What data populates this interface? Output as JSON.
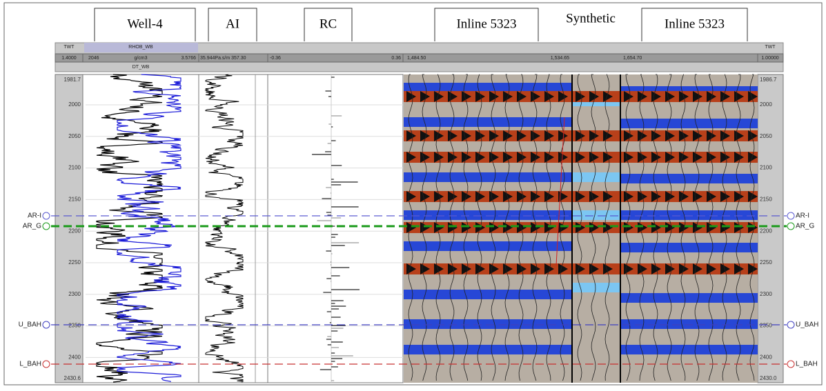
{
  "tabs": [
    "Well-4",
    "AI",
    "RC",
    "Inline 5323",
    "Synthetic",
    "Inline 5323"
  ],
  "header": {
    "left_axis": {
      "name": "TWT",
      "value": "1.4000"
    },
    "well": {
      "curve_1": "RHOB_WB",
      "min": "2046",
      "unit": "g/cm3",
      "max": "3.5766",
      "curve_2": "DT_WB"
    },
    "ai": {
      "range": "35.944Pa.s/m 357.30"
    },
    "rc": {
      "min": "-0.36",
      "max": "0.36"
    },
    "seismic": {
      "left": "1,484.50",
      "mid": "1,534.65",
      "right": "1,654.70"
    },
    "right_axis": {
      "name": "TWT",
      "value": "1.00000"
    }
  },
  "depth_left": [
    "1981.7",
    "2000",
    "2050",
    "2100",
    "2150",
    "2200",
    "2250",
    "2300",
    "2350",
    "2400",
    "2430.6"
  ],
  "depth_right": [
    "1986.7",
    "2000",
    "2050",
    "2100",
    "2150",
    "2200",
    "2250",
    "2300",
    "2350",
    "2400",
    "2430.0"
  ],
  "horizons": [
    {
      "name": "AR-I",
      "color": "#5a5ad0"
    },
    {
      "name": "AR_G",
      "color": "#1a9a1a"
    },
    {
      "name": "U_BAH",
      "color": "#4040c0"
    },
    {
      "name": "L_BAH",
      "color": "#c83030"
    }
  ]
}
